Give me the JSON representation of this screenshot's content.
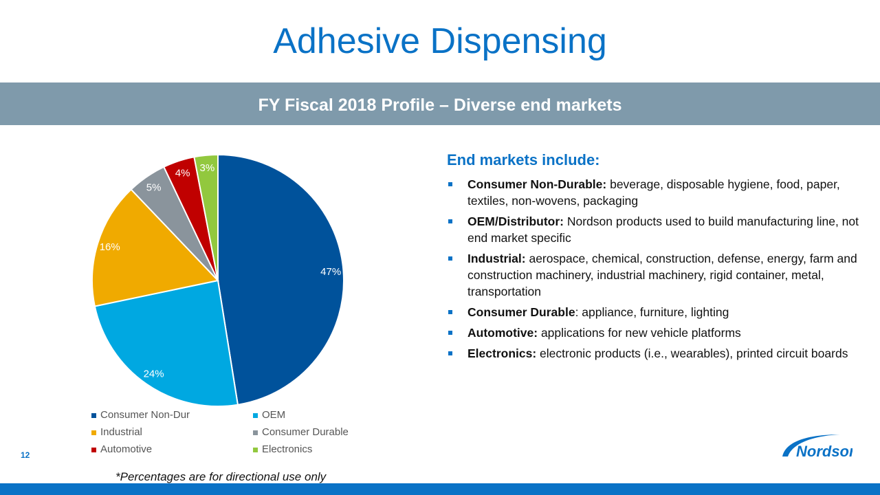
{
  "title": "Adhesive Dispensing",
  "band": "FY Fiscal 2018 Profile – Diverse end markets",
  "chart_data": {
    "type": "pie",
    "categories": [
      "Consumer Non-Dur",
      "OEM",
      "Industrial",
      "Consumer Durable",
      "Automotive",
      "Electronics"
    ],
    "values": [
      47,
      24,
      16,
      5,
      4,
      3
    ],
    "labels": [
      "47%",
      "24%",
      "16%",
      "5%",
      "4%",
      "3%"
    ],
    "colors": [
      "#00529b",
      "#00a8e1",
      "#f0aa00",
      "#8a949c",
      "#c00000",
      "#92c83e"
    ],
    "legend_position": "bottom"
  },
  "right": {
    "heading": "End markets include:",
    "items": [
      {
        "bold": "Consumer Non-Durable:",
        "text": " beverage, disposable hygiene, food, paper, textiles, non-wovens, packaging"
      },
      {
        "bold": "OEM/Distributor:",
        "text": " Nordson products used to build manufacturing line, not end market specific"
      },
      {
        "bold": "Industrial:",
        "text": " aerospace, chemical, construction, defense, energy, farm and construction machinery, industrial machinery, rigid container, metal, transportation"
      },
      {
        "bold": "Consumer Durable",
        "text": ": appliance, furniture, lighting"
      },
      {
        "bold": "Automotive:",
        "text": " applications for new vehicle platforms"
      },
      {
        "bold": "Electronics:",
        "text": " electronic products (i.e., wearables), printed circuit boards"
      }
    ]
  },
  "page_number": "12",
  "footnote": "*Percentages are for directional use only",
  "logo": "Nordson"
}
